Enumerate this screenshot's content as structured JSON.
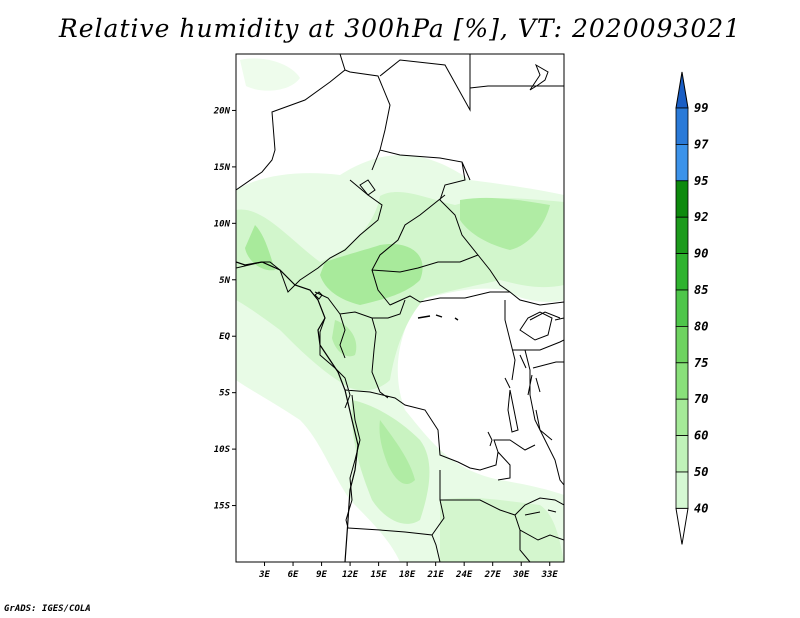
{
  "title": "Relative humidity at 300hPa [%], VT: 2020093021",
  "credit": "GrADS: IGES/COLA",
  "map": {
    "lat_labels": [
      "20N",
      "15N",
      "10N",
      "5N",
      "EQ",
      "5S",
      "10S",
      "15S"
    ],
    "lat_values": [
      20,
      15,
      10,
      5,
      0,
      -5,
      -10,
      -15
    ],
    "lon_labels": [
      "3E",
      "6E",
      "9E",
      "12E",
      "15E",
      "18E",
      "21E",
      "24E",
      "27E",
      "30E",
      "33E"
    ],
    "lon_values": [
      3,
      6,
      9,
      12,
      15,
      18,
      21,
      24,
      27,
      30,
      33
    ],
    "lon_range": [
      0,
      34.5
    ],
    "lat_range": [
      -20,
      25
    ]
  },
  "colorbar": {
    "levels": [
      "40",
      "50",
      "60",
      "70",
      "75",
      "80",
      "85",
      "90",
      "92",
      "95",
      "97",
      "99"
    ],
    "colors": [
      "#ffffff",
      "#edfced",
      "#d5f8d3",
      "#c0f2b9",
      "#a5ea98",
      "#89e07a",
      "#6ed360",
      "#4ec64a",
      "#2fb32f",
      "#1c9b1c",
      "#0d8a0d",
      "#3c93ea",
      "#2a7ad8",
      "#1a5ec4"
    ]
  }
}
